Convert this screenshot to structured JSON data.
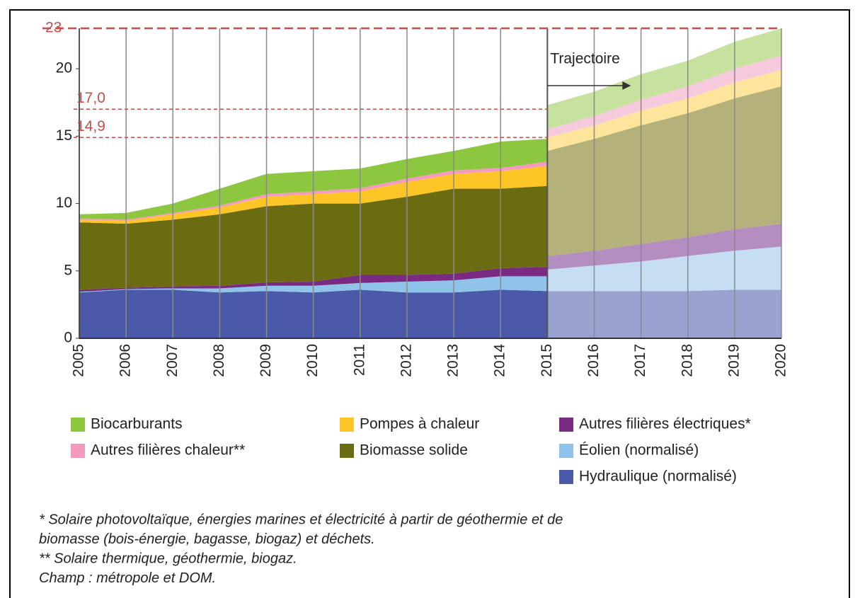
{
  "chart_data": {
    "type": "area",
    "x": [
      2005,
      2006,
      2007,
      2008,
      2009,
      2010,
      2011,
      2012,
      2013,
      2014,
      2015
    ],
    "xlim": [
      2005,
      2020
    ],
    "xticks": [
      2005,
      2006,
      2007,
      2008,
      2009,
      2010,
      2011,
      2012,
      2013,
      2014,
      2015,
      2016,
      2017,
      2018,
      2019,
      2020
    ],
    "ylim": [
      0,
      23
    ],
    "yticks": [
      0,
      5,
      10,
      15,
      20
    ],
    "grid": true,
    "stacked": true,
    "series": [
      {
        "name": "Hydraulique (normalisé)",
        "color": "#4a5aa8",
        "values": [
          3.4,
          3.6,
          3.6,
          3.4,
          3.5,
          3.4,
          3.6,
          3.4,
          3.4,
          3.6,
          3.5
        ]
      },
      {
        "name": "Éolien (normalisé)",
        "color": "#8fc3ea",
        "values": [
          0.05,
          0.05,
          0.1,
          0.3,
          0.4,
          0.5,
          0.5,
          0.8,
          0.9,
          1.0,
          1.1
        ]
      },
      {
        "name": "Autres filières électriques*",
        "color": "#7b2a84",
        "values": [
          0.15,
          0.1,
          0.15,
          0.2,
          0.25,
          0.3,
          0.6,
          0.5,
          0.5,
          0.6,
          0.7
        ]
      },
      {
        "name": "Biomasse solide",
        "color": "#6b6b12",
        "values": [
          5.0,
          4.75,
          4.95,
          5.3,
          5.65,
          5.8,
          5.3,
          5.8,
          6.3,
          5.9,
          6.0
        ]
      },
      {
        "name": "Pompes à chaleur",
        "color": "#fdc526",
        "values": [
          0.2,
          0.2,
          0.4,
          0.5,
          0.7,
          0.7,
          0.9,
          1.1,
          1.1,
          1.3,
          1.5
        ]
      },
      {
        "name": "Autres filières chaleur**",
        "color": "#f49ac1",
        "values": [
          0.1,
          0.1,
          0.1,
          0.15,
          0.2,
          0.2,
          0.25,
          0.25,
          0.25,
          0.25,
          0.3
        ]
      },
      {
        "name": "Biocarburants",
        "color": "#8dc63f",
        "values": [
          0.3,
          0.5,
          0.7,
          1.25,
          1.5,
          1.5,
          1.45,
          1.45,
          1.45,
          1.95,
          1.7
        ]
      }
    ],
    "trajectory": {
      "x": [
        2015,
        2016,
        2017,
        2018,
        2019,
        2020
      ],
      "series": [
        {
          "color": "#9aa2cf",
          "values": [
            3.5,
            3.5,
            3.5,
            3.5,
            3.6,
            3.6
          ]
        },
        {
          "color": "#c5def3",
          "values": [
            1.6,
            1.9,
            2.2,
            2.6,
            2.9,
            3.2
          ]
        },
        {
          "color": "#b48ec0",
          "values": [
            1.0,
            1.1,
            1.3,
            1.4,
            1.6,
            1.7
          ]
        },
        {
          "color": "#b4b27a",
          "values": [
            7.8,
            8.3,
            8.8,
            9.2,
            9.7,
            10.2
          ]
        },
        {
          "color": "#fde59b",
          "values": [
            1.0,
            1.0,
            1.1,
            1.1,
            1.2,
            1.2
          ]
        },
        {
          "color": "#f7c9dd",
          "values": [
            0.6,
            0.7,
            0.8,
            0.9,
            1.0,
            1.1
          ]
        },
        {
          "color": "#c7e19f",
          "values": [
            1.8,
            1.8,
            1.9,
            1.9,
            2.0,
            2.0
          ]
        }
      ]
    },
    "reference_lines": [
      {
        "value": 23,
        "label": "23",
        "color": "#c0504d"
      },
      {
        "value": 17.0,
        "label": "17,0",
        "color": "#c0504d"
      },
      {
        "value": 14.9,
        "label": "14,9",
        "color": "#c0504d"
      }
    ],
    "annotation": {
      "text": "Trajectoire",
      "x": 2015
    },
    "notes": [
      "* Solaire photovoltaïque, énergies marines et électricité à partir de géothermie et de",
      "biomasse (bois-énergie, bagasse, biogaz) et déchets.",
      "** Solaire thermique, géothermie, biogaz.",
      "Champ : métropole et DOM."
    ]
  }
}
